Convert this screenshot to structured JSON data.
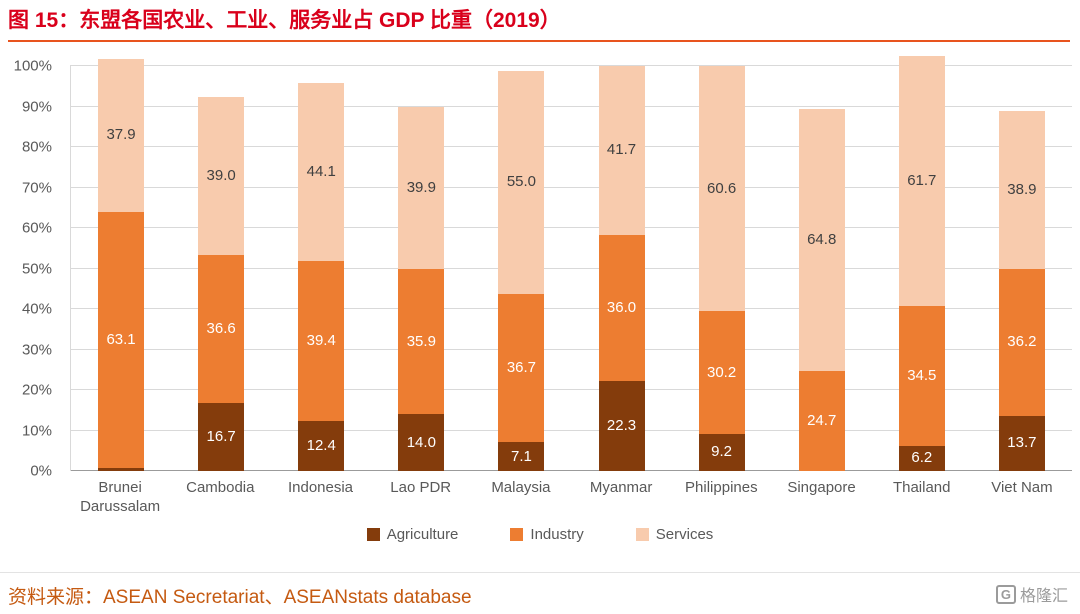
{
  "header": {
    "title": "图 15：东盟各国农业、工业、服务业占 GDP 比重（2019）"
  },
  "footer": {
    "source": "资料来源：ASEAN Secretariat、ASEANstats database",
    "logo_icon": "G",
    "logo_text": "格隆汇"
  },
  "theme": {
    "title_color": "#D9001B",
    "rule_color": "#E8541E",
    "source_color": "#C55A11",
    "axis_text": "#595959",
    "grid_color": "#D9D9D9",
    "zero_line": "#9B9B9B",
    "logo_color": "#9B9B9B"
  },
  "chart_data": {
    "type": "bar",
    "stacked": true,
    "categories": [
      "Brunei Darussalam",
      "Cambodia",
      "Indonesia",
      "Lao PDR",
      "Malaysia",
      "Myanmar",
      "Philippines",
      "Singapore",
      "Thailand",
      "Viet Nam"
    ],
    "series": [
      {
        "name": "Agriculture",
        "color": "#843C0C",
        "label_color": "#FFFFFF",
        "values": [
          0.8,
          16.7,
          12.4,
          14.0,
          7.1,
          22.3,
          9.2,
          0.0,
          6.2,
          13.7
        ]
      },
      {
        "name": "Industry",
        "color": "#ED7D31",
        "label_color": "#FFFFFF",
        "values": [
          63.1,
          36.6,
          39.4,
          35.9,
          36.7,
          36.0,
          30.2,
          24.7,
          34.5,
          36.2
        ]
      },
      {
        "name": "Services",
        "color": "#F8CBAD",
        "label_color": "#404040",
        "values": [
          37.9,
          39.0,
          44.1,
          39.9,
          55.0,
          41.7,
          60.6,
          64.8,
          61.7,
          38.9
        ]
      }
    ],
    "y_ticks": [
      "0%",
      "10%",
      "20%",
      "30%",
      "40%",
      "50%",
      "60%",
      "70%",
      "80%",
      "90%",
      "100%"
    ],
    "ylim": [
      0,
      100
    ],
    "grid": true,
    "legend_position": "bottom",
    "value_label_decimals": 1
  }
}
